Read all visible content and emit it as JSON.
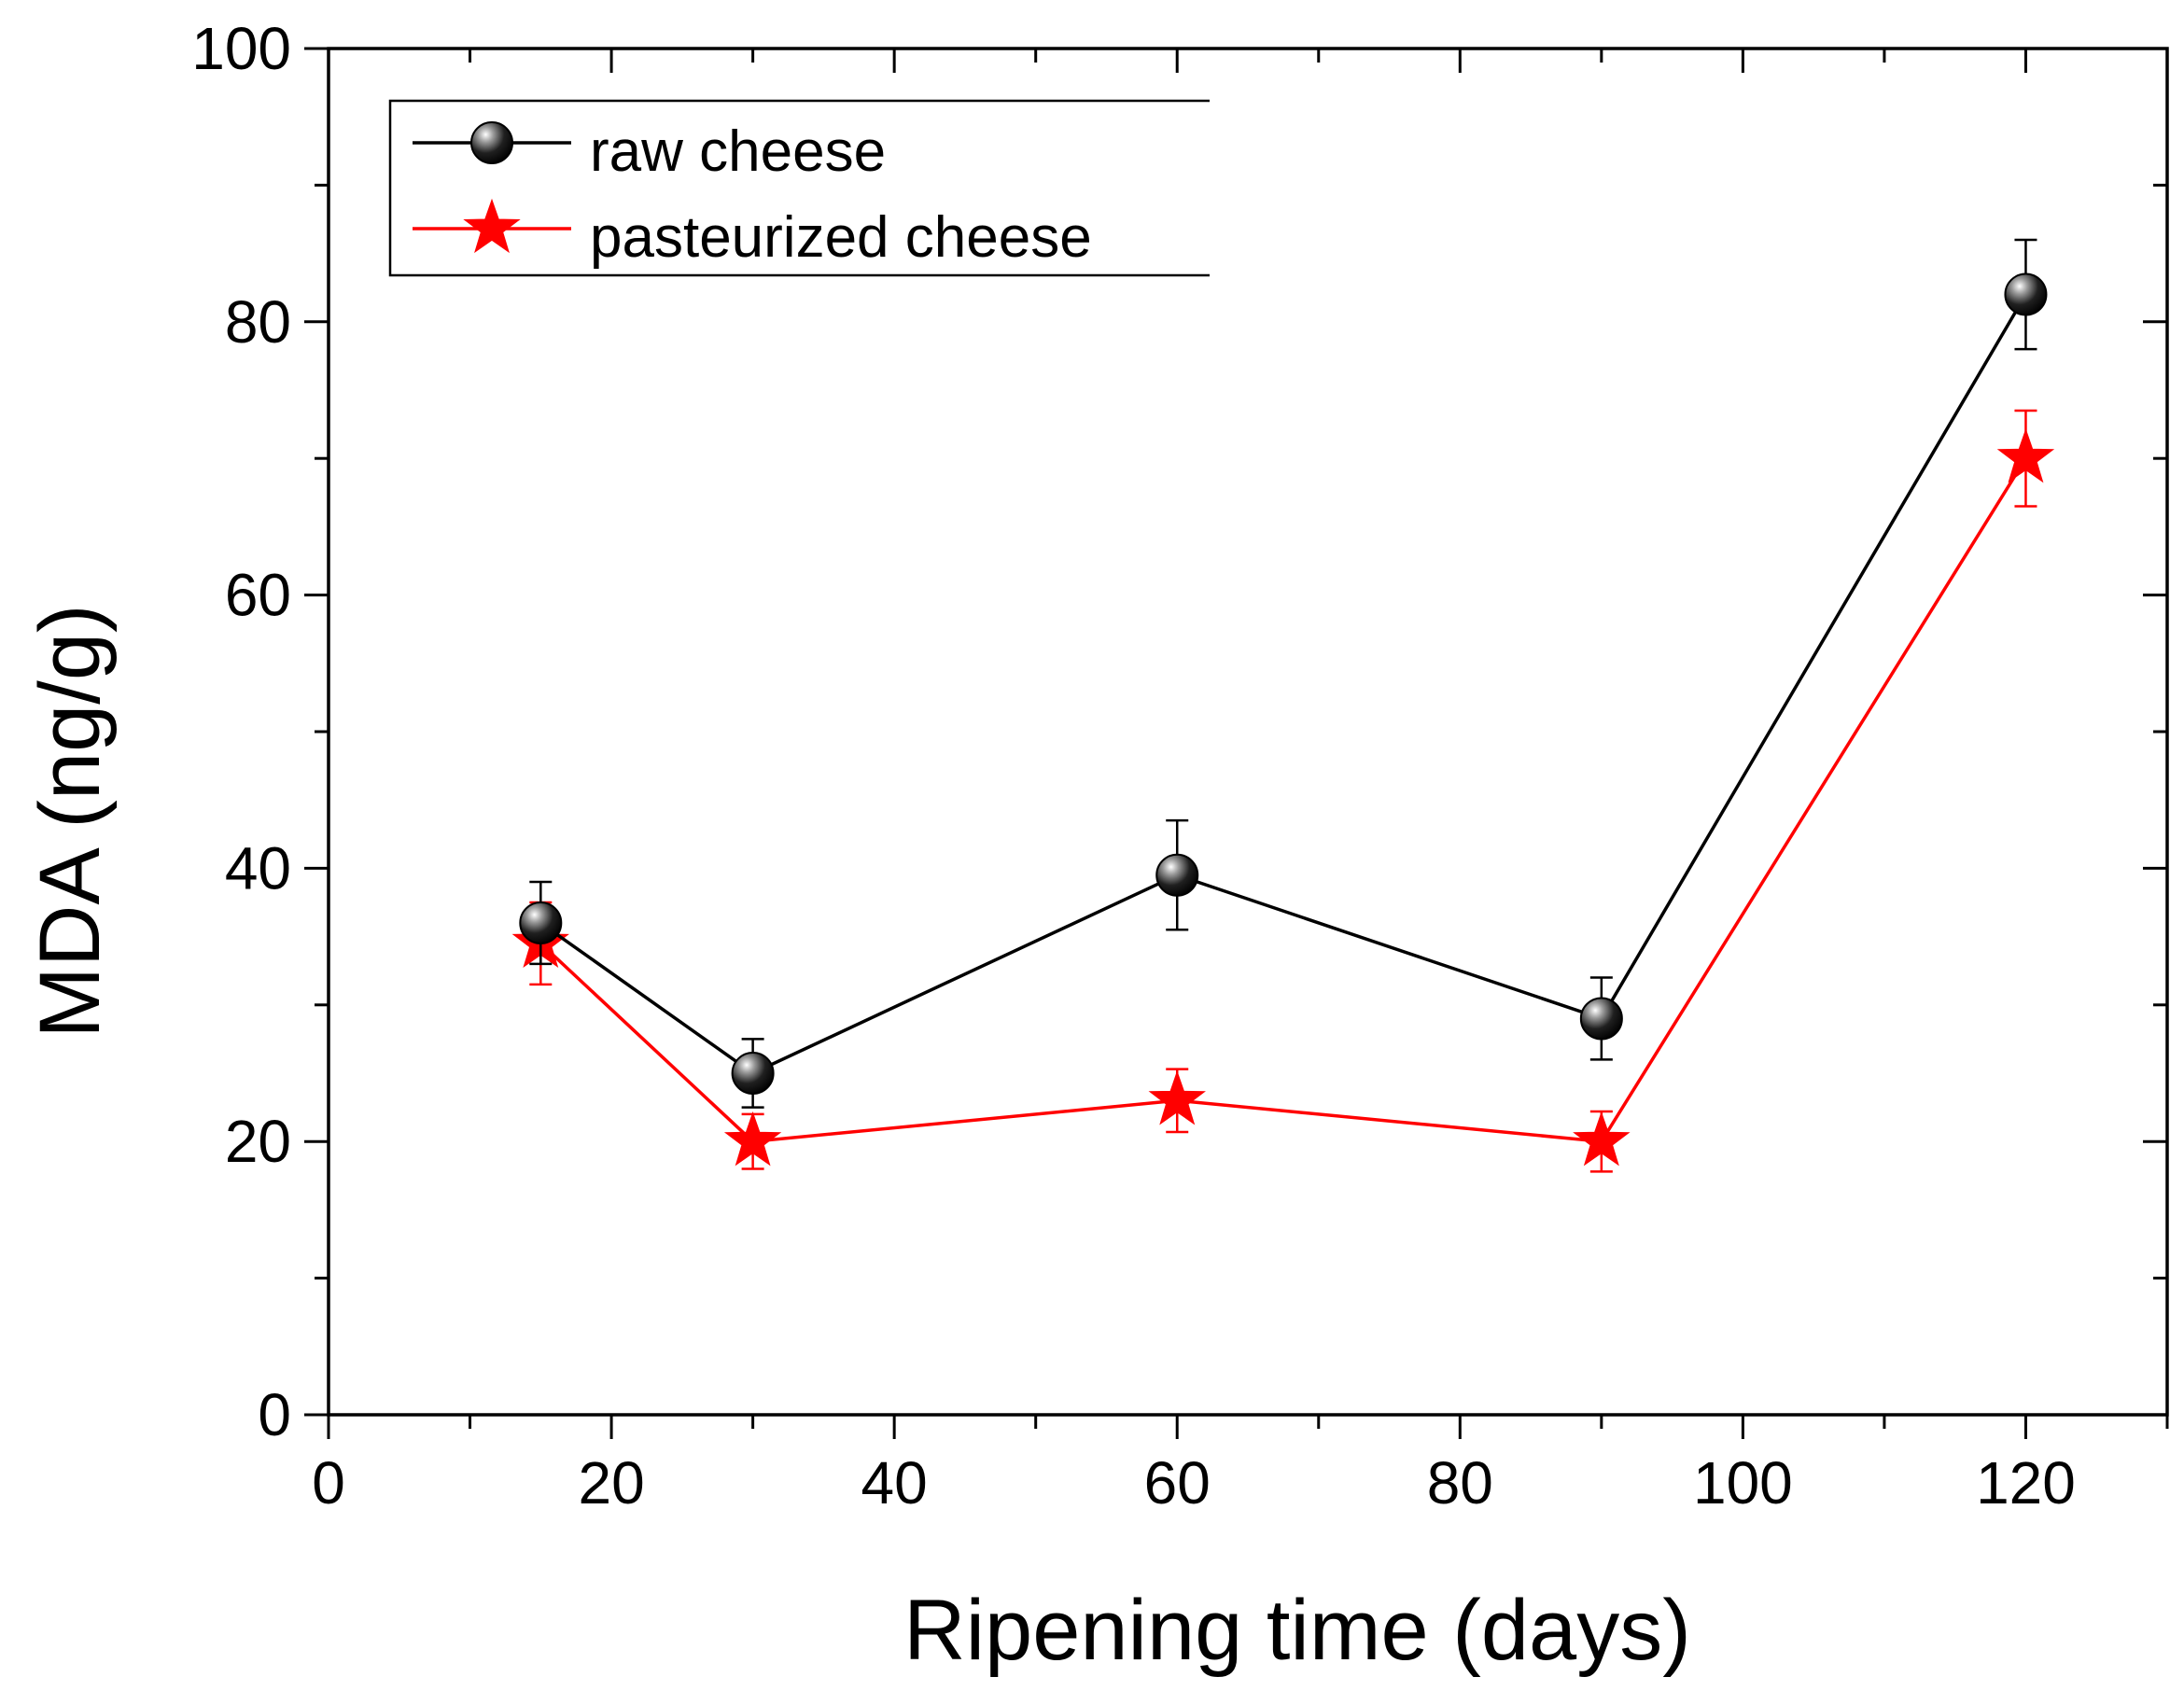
{
  "chart_data": {
    "type": "line",
    "title": "",
    "xlabel": "Ripening time (days)",
    "ylabel": "MDA (ng/g)",
    "xlim": [
      0,
      130
    ],
    "ylim": [
      0,
      100
    ],
    "xticks": [
      0,
      20,
      40,
      60,
      80,
      100,
      120
    ],
    "yticks": [
      0,
      20,
      40,
      60,
      80,
      100
    ],
    "xtick_labels": [
      "0",
      "20",
      "40",
      "60",
      "80",
      "100",
      "120"
    ],
    "ytick_labels": [
      "0",
      "20",
      "40",
      "60",
      "80",
      "100"
    ],
    "x_minor_step": 10,
    "y_minor_step": 10,
    "grid": false,
    "legend": "top-left",
    "x": [
      15,
      30,
      60,
      90,
      120
    ],
    "series": [
      {
        "name": "raw cheese",
        "color": "#000000",
        "marker": "sphere",
        "values": [
          36,
          25,
          39.5,
          29,
          82
        ],
        "errors": [
          3,
          2.5,
          4,
          3,
          4
        ]
      },
      {
        "name": "pasteurized cheese",
        "color": "#ff0000",
        "marker": "star",
        "values": [
          34.5,
          20,
          23,
          20,
          70
        ],
        "errors": [
          3,
          2,
          2.3,
          2.2,
          3.5
        ]
      }
    ]
  }
}
